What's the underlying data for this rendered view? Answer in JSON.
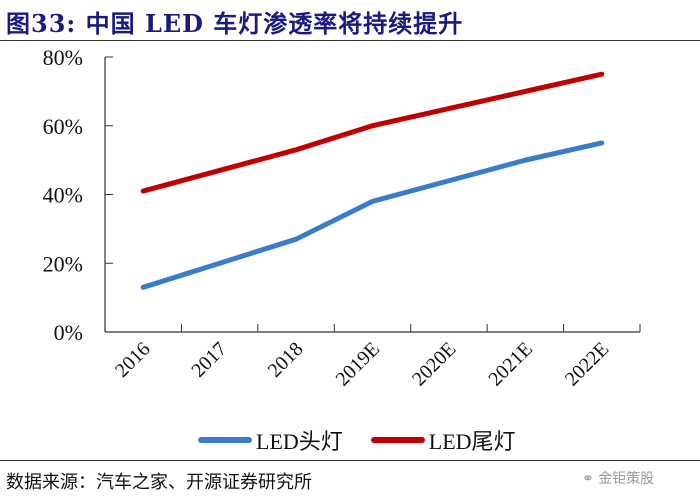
{
  "figure": {
    "title": "图33:  中国 LED 车灯渗透率将持续提升",
    "source": "数据来源：汽车之家、开源证券研究所",
    "watermark": "金钜策股",
    "watermark_icon": "wechat-icon"
  },
  "chart_data": {
    "type": "line",
    "title": "中国 LED 车灯渗透率将持续提升",
    "xlabel": "",
    "ylabel": "",
    "categories": [
      "2016",
      "2017",
      "2018",
      "2019E",
      "2020E",
      "2021E",
      "2022E"
    ],
    "ylim": [
      0,
      80
    ],
    "yticks": [
      0,
      20,
      40,
      60,
      80
    ],
    "ytick_labels": [
      "0%",
      "20%",
      "40%",
      "60%",
      "80%"
    ],
    "grid": false,
    "legend_position": "bottom",
    "series": [
      {
        "name": "LED头灯",
        "color": "#3a7ccc",
        "values": [
          13,
          20,
          27,
          38,
          44,
          50,
          55
        ]
      },
      {
        "name": "LED尾灯",
        "color": "#c00000",
        "values": [
          41,
          47,
          53,
          60,
          65,
          70,
          75
        ]
      }
    ]
  }
}
